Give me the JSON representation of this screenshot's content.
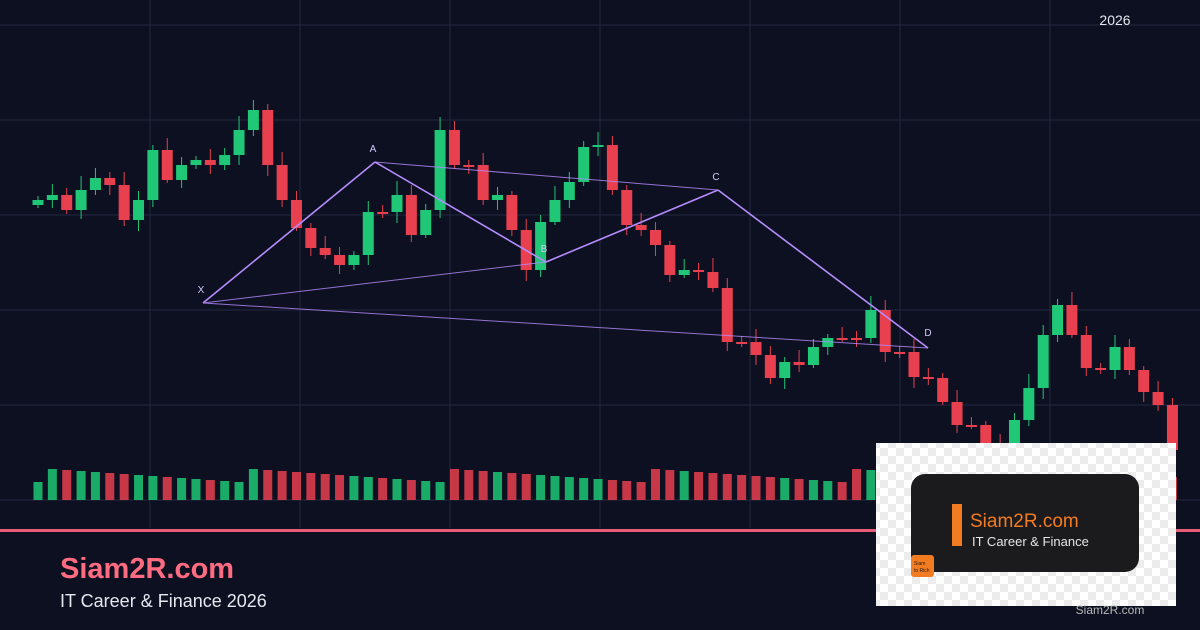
{
  "header": {
    "year": "2026"
  },
  "pattern": {
    "points": [
      "X",
      "A",
      "B",
      "C",
      "D"
    ]
  },
  "footer": {
    "brand": "Siam2R.com",
    "tagline": "IT Career & Finance 2026"
  },
  "card": {
    "brand": "Siam2R.com",
    "tagline": "IT Career & Finance",
    "logo": [
      "Siam",
      "to Rich"
    ],
    "watermark": "Siam2R.com"
  }
}
